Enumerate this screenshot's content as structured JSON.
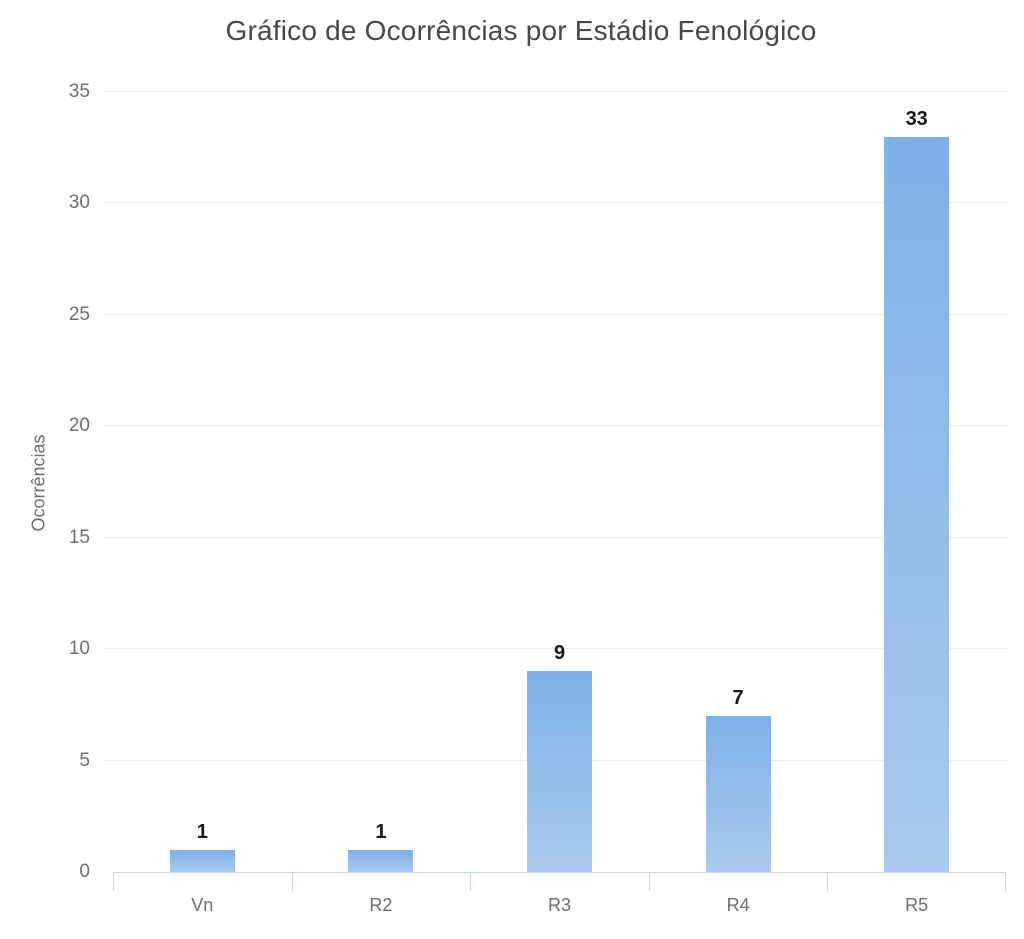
{
  "chart_data": {
    "type": "bar",
    "title": "Gráfico de Ocorrências por Estádio Fenológico",
    "xlabel": "",
    "ylabel": "Ocorrências",
    "categories": [
      "Vn",
      "R2",
      "R3",
      "R4",
      "R5"
    ],
    "values": [
      1,
      1,
      9,
      7,
      33
    ],
    "ylim": [
      0,
      35
    ],
    "yticks": [
      0,
      5,
      10,
      15,
      20,
      25,
      30,
      35
    ],
    "grid": true,
    "legend_position": "none",
    "value_labels_shown": true,
    "colors": {
      "bar_gradient_top": "#7db1e8",
      "bar_gradient_bottom": "#aac9ee",
      "axis_line": "#c3d3ec",
      "gridline": "#ececec",
      "title_text": "#484848",
      "axis_text": "#6e6e6e",
      "value_label_text": "#1a1a1a",
      "background": "#ffffff"
    }
  }
}
